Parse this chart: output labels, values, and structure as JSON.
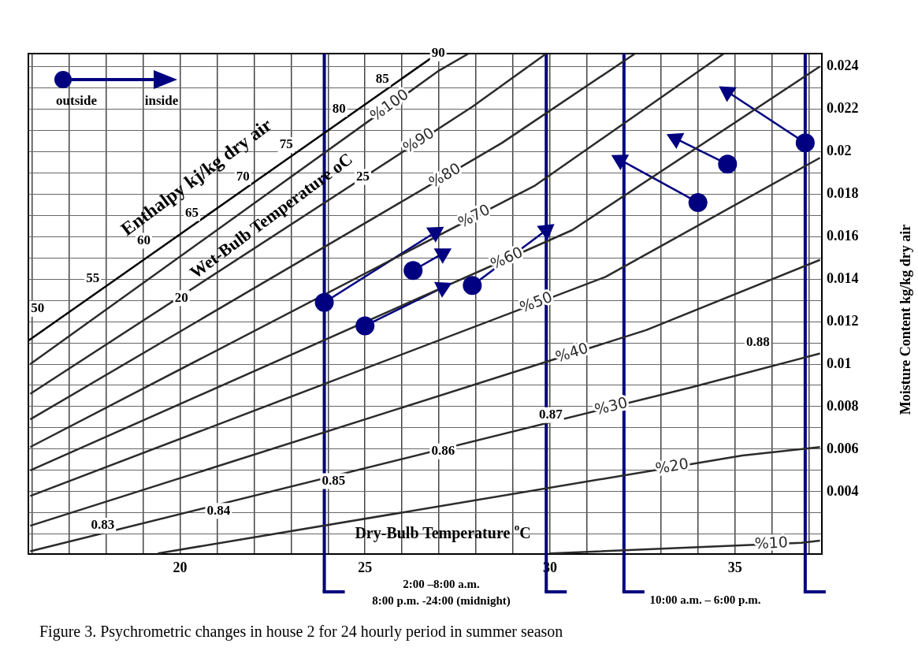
{
  "chart_data": {
    "type": "scatter",
    "xlabel": "Dry-Bulb Temperature $^{o}$C",
    "ylabel": "Moisture Content kg/kg dry air",
    "xlim": [
      15.9,
      37.35
    ],
    "ylim": [
      0.00107,
      0.0246
    ],
    "xticks": [
      {
        "value": 16,
        "label": null
      },
      {
        "value": 17,
        "label": null
      },
      {
        "value": 18,
        "label": null
      },
      {
        "value": 19,
        "label": null
      },
      20,
      {
        "value": 21,
        "label": null
      },
      {
        "value": 22,
        "label": null
      },
      {
        "value": 23,
        "label": null
      },
      {
        "value": 24,
        "label": null
      },
      25,
      {
        "value": 26,
        "label": null
      },
      {
        "value": 27,
        "label": null
      },
      {
        "value": 28,
        "label": null
      },
      {
        "value": 29,
        "label": null
      },
      30,
      {
        "value": 31,
        "label": null
      },
      {
        "value": 32,
        "label": null
      },
      {
        "value": 33,
        "label": null
      },
      {
        "value": 34,
        "label": null
      },
      35,
      {
        "value": 36,
        "label": null
      },
      {
        "value": 37,
        "label": null
      }
    ],
    "yticks": [
      {
        "value": 0.002,
        "label": null
      },
      {
        "value": 0.003,
        "label": null
      },
      0.004,
      {
        "value": 0.005,
        "label": null
      },
      0.006,
      {
        "value": 0.007,
        "label": null
      },
      0.008,
      {
        "value": 0.009,
        "label": null
      },
      0.01,
      {
        "value": 0.011,
        "label": null
      },
      0.012,
      {
        "value": 0.013,
        "label": null
      },
      0.014,
      {
        "value": 0.015,
        "label": null
      },
      0.016,
      {
        "value": 0.017,
        "label": null
      },
      0.018,
      {
        "value": 0.019,
        "label": null
      },
      0.02,
      {
        "value": 0.021,
        "label": null
      },
      0.022,
      {
        "value": 0.023,
        "label": null
      },
      0.024
    ],
    "grid": true,
    "legend": "top left",
    "series": [
      {
        "type": "line",
        "name": "%100",
        "color": "#2b2b2b",
        "x": [
          15.95,
          27.0,
          27.8
        ],
        "values": [
          0.01,
          0.0238,
          0.0246
        ]
      },
      {
        "type": "line",
        "name": "%90",
        "color": "#2b2b2b",
        "x": [
          15.95,
          27.9,
          29.9
        ],
        "values": [
          0.0086,
          0.0221,
          0.0246
        ]
      },
      {
        "type": "line",
        "name": "%80",
        "color": "#2b2b2b",
        "x": [
          15.95,
          28.7,
          32.3
        ],
        "values": [
          0.0074,
          0.0204,
          0.0246
        ]
      },
      {
        "type": "line",
        "name": "%70",
        "color": "#2b2b2b",
        "x": [
          15.95,
          29.6,
          34.7
        ],
        "values": [
          0.0061,
          0.0184,
          0.0246
        ]
      },
      {
        "type": "line",
        "name": "%60",
        "color": "#2b2b2b",
        "x": [
          15.95,
          30.6,
          37.3
        ],
        "values": [
          0.005,
          0.0163,
          0.024
        ]
      },
      {
        "type": "line",
        "name": "%50",
        "color": "#2b2b2b",
        "x": [
          15.95,
          31.5,
          37.3
        ],
        "values": [
          0.0038,
          0.0141,
          0.0197
        ]
      },
      {
        "type": "line",
        "name": "%40",
        "color": "#2b2b2b",
        "x": [
          15.95,
          32.6,
          37.3
        ],
        "values": [
          0.0024,
          0.0116,
          0.0149
        ]
      },
      {
        "type": "line",
        "name": "%30",
        "color": "#2b2b2b",
        "x": [
          15.95,
          33.8,
          37.3
        ],
        "values": [
          0.0012,
          0.0089,
          0.0105
        ]
      },
      {
        "type": "line",
        "name": "%20",
        "color": "#2b2b2b",
        "x": [
          19.4,
          35.2,
          37.3
        ],
        "values": [
          0.0011,
          0.0057,
          0.0061
        ]
      },
      {
        "type": "line",
        "name": "%10",
        "color": "#2b2b2b",
        "x": [
          30.0,
          36.8,
          37.3
        ],
        "values": [
          0.0011,
          0.0016,
          0.0017
        ]
      },
      {
        "type": "line",
        "color": "#000000",
        "x": [
          15.9,
          26.96
        ],
        "values": [
          0.0111,
          0.0246
        ]
      },
      {
        "type": "line",
        "color": "#000080",
        "x": [
          23.9,
          26.9
        ],
        "values": [
          0.0129,
          0.0162
        ]
      },
      {
        "type": "line",
        "color": "#000080",
        "x": [
          26.3,
          27.1
        ],
        "values": [
          0.0144,
          0.0152
        ]
      },
      {
        "type": "line",
        "color": "#000080",
        "x": [
          25.0,
          27.1
        ],
        "values": [
          0.0118,
          0.0136
        ]
      },
      {
        "type": "line",
        "color": "#000080",
        "x": [
          27.9,
          29.9
        ],
        "values": [
          0.0137,
          0.0163
        ]
      },
      {
        "type": "line",
        "color": "#000080",
        "x": [
          34.0,
          31.9
        ],
        "values": [
          0.0176,
          0.0196
        ]
      },
      {
        "type": "line",
        "color": "#000080",
        "x": [
          34.8,
          33.4
        ],
        "values": [
          0.0194,
          0.0206
        ]
      },
      {
        "type": "line",
        "color": "#000080",
        "x": [
          36.9,
          34.8
        ],
        "values": [
          0.0204,
          0.0228
        ]
      },
      {
        "name": "outside",
        "color": "#000080",
        "marker": "circle",
        "x": [
          23.9,
          26.3,
          25.0,
          27.9,
          34.0,
          34.8,
          36.9
        ],
        "values": [
          0.0129,
          0.0144,
          0.0118,
          0.0137,
          0.0176,
          0.0194,
          0.0204
        ]
      },
      {
        "name": "inside",
        "color": "#000080",
        "marker": "triangle",
        "x": [
          26.9,
          27.1,
          27.1,
          29.9,
          31.9,
          33.4,
          34.8
        ],
        "values": [
          0.0162,
          0.0152,
          0.0136,
          0.0163,
          0.0196,
          0.0206,
          0.0228
        ]
      }
    ],
    "ref_lines": [
      {
        "axis": "x",
        "value": 23.9,
        "color": "#000080"
      },
      {
        "axis": "x",
        "value": 29.9,
        "color": "#000080"
      },
      {
        "axis": "x",
        "value": 32.0,
        "color": "#000080"
      },
      {
        "axis": "x",
        "value": 36.9,
        "color": "#000080"
      }
    ],
    "annotations": [
      {
        "text": "50",
        "x": 16.15,
        "y": 0.0126
      },
      {
        "text": "55",
        "x": 17.64,
        "y": 0.014
      },
      {
        "text": "60",
        "x": 19.02,
        "y": 0.0158
      },
      {
        "text": "65",
        "x": 20.32,
        "y": 0.0171
      },
      {
        "text": "70",
        "x": 21.7,
        "y": 0.0188
      },
      {
        "text": "75",
        "x": 22.87,
        "y": 0.0203
      },
      {
        "text": "80",
        "x": 24.3,
        "y": 0.022
      },
      {
        "text": "85",
        "x": 25.47,
        "y": 0.0234
      },
      {
        "text": "90",
        "x": 26.98,
        "y": 0.0246
      },
      {
        "text": "20",
        "x": 20.04,
        "y": 0.0131
      },
      {
        "text": "25",
        "x": 24.94,
        "y": 0.0188
      },
      {
        "text": "0.83",
        "x": 17.91,
        "y": 0.0024
      },
      {
        "text": "0.84",
        "x": 21.04,
        "y": 0.0031
      },
      {
        "text": "0.85",
        "x": 24.15,
        "y": 0.0045
      },
      {
        "text": "0.86",
        "x": 27.11,
        "y": 0.0059
      },
      {
        "text": "0.87",
        "x": 30.02,
        "y": 0.0076
      },
      {
        "text": "0.88",
        "x": 35.62,
        "y": 0.011
      },
      "Enthalpy kj/kg dry air",
      "Wet-Bulb Temperature oC",
      "2:00 –8:00 a.m.\n8:00 p.m. -24:00 (midnight)",
      "10:00 a.m. – 6:00 p.m.",
      "Figure 3. Psychrometric changes in house 2 for 24 hourly period in summer season"
    ]
  }
}
